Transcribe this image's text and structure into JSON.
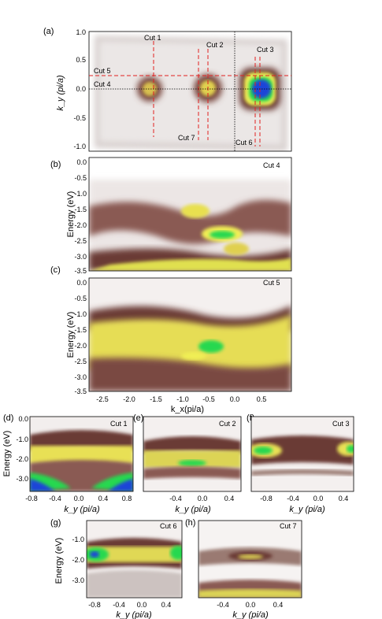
{
  "panels": {
    "a": {
      "label": "(a)",
      "ylabel": "k_y (pi/a)",
      "yticks": [
        "1.0",
        "0.5",
        "0.0",
        "-0.5",
        "-1.0"
      ],
      "cuts": [
        "Cut 1",
        "Cut 2",
        "Cut 3",
        "Cut 5",
        "Cut 4",
        "Cut 7",
        "Cut 6"
      ]
    },
    "b": {
      "label": "(b)",
      "ylabel": "Energy (eV)",
      "cut": "Cut 4",
      "yticks": [
        "0.0",
        "-0.5",
        "-1.0",
        "-1.5",
        "-2.0",
        "-2.5",
        "-3.0",
        "-3.5"
      ]
    },
    "c": {
      "label": "(c)",
      "ylabel": "Energy (eV)",
      "cut": "Cut 5",
      "yticks": [
        "0.0",
        "-0.5",
        "-1.0",
        "-1.5",
        "-2.0",
        "-2.5",
        "-3.0",
        "-3.5"
      ],
      "xticks": [
        "-2.5",
        "-2.0",
        "-1.5",
        "-1.0",
        "-0.5",
        "0.0",
        "0.5"
      ],
      "xlabel": "k_x(pi/a)"
    },
    "d": {
      "label": "(d)",
      "cut": "Cut 1",
      "ylabel": "Energy (eV)",
      "yticks": [
        "0.0",
        "-1.0",
        "-2.0",
        "-3.0"
      ],
      "xticks": [
        "-0.8",
        "-0.4",
        "0.0",
        "0.4",
        "0.8"
      ],
      "xlabel": "k_y (pi/a)"
    },
    "e": {
      "label": "(e)",
      "cut": "Cut 2",
      "xticks": [
        "-0.4",
        "0.0",
        "0.4"
      ],
      "xlabel": "k_y (pi/a)"
    },
    "f": {
      "label": "(f)",
      "cut": "Cut 3",
      "xticks": [
        "-0.8",
        "-0.4",
        "0.0",
        "0.4"
      ],
      "xlabel": "k_y (pi/a)"
    },
    "g": {
      "label": "(g)",
      "cut": "Cut 6",
      "ylabel": "Energy (eV)",
      "yticks": [
        "-1.0",
        "-2.0",
        "-3.0"
      ],
      "xticks": [
        "-0.8",
        "-0.4",
        "0.0",
        "0.4"
      ],
      "xlabel": "k_y (pi/a)"
    },
    "h": {
      "label": "(h)",
      "cut": "Cut 7",
      "xticks": [
        "-0.4",
        "0.0",
        "0.4"
      ],
      "xlabel": "k_y (pi/a)"
    }
  },
  "colors": {
    "dark": "#6b3b34",
    "mid": "#b9a29d",
    "light": "#e9e3e2",
    "yellow": "#f0ee55",
    "green": "#28d850",
    "blue": "#1a44d8",
    "cut_line": "#e02020"
  }
}
